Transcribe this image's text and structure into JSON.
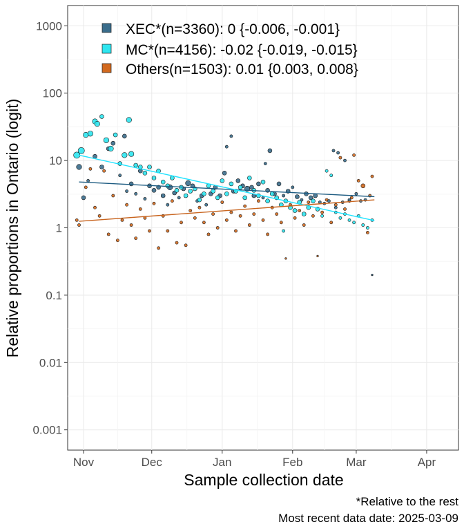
{
  "chart_data": {
    "type": "scatter",
    "xlabel": "Sample collection date",
    "ylabel": "Relative proportions in Ontario (logit)",
    "y_scale": "log",
    "ylim": [
      0.0005,
      2000
    ],
    "xlim": [
      "2024-10-25",
      "2025-04-15"
    ],
    "y_ticks": [
      {
        "value": 0.001,
        "label": "0.001"
      },
      {
        "value": 0.01,
        "label": "0.01"
      },
      {
        "value": 0.1,
        "label": "0.1"
      },
      {
        "value": 1,
        "label": "1"
      },
      {
        "value": 10,
        "label": "10"
      },
      {
        "value": 100,
        "label": "100"
      },
      {
        "value": 1000,
        "label": "1000"
      }
    ],
    "x_ticks": [
      {
        "date": "2024-11-01",
        "label": "Nov"
      },
      {
        "date": "2024-12-01",
        "label": "Dec"
      },
      {
        "date": "2025-01-01",
        "label": "Jan"
      },
      {
        "date": "2025-02-01",
        "label": "Feb"
      },
      {
        "date": "2025-03-01",
        "label": "Mar"
      },
      {
        "date": "2025-04-01",
        "label": "Apr"
      }
    ],
    "grid": true,
    "legend_position": "top-left",
    "series": [
      {
        "name": "XEC*(n=3360): 0 {-0.006, -0.001}",
        "color": "#3a6d8c",
        "trend": [
          {
            "date": "2024-10-30",
            "y": 4.8
          },
          {
            "date": "2025-03-09",
            "y": 2.9
          }
        ],
        "points": [
          [
            "2024-10-30",
            8.0,
            4
          ],
          [
            "2024-11-01",
            2.8,
            3
          ],
          [
            "2024-11-03",
            5.0,
            2
          ],
          [
            "2024-11-06",
            11.5,
            3
          ],
          [
            "2024-11-09",
            8.0,
            3
          ],
          [
            "2024-11-12",
            15.0,
            3
          ],
          [
            "2024-11-14",
            18.0,
            3
          ],
          [
            "2024-11-17",
            6.0,
            2
          ],
          [
            "2024-11-19",
            23.0,
            3
          ],
          [
            "2024-11-20",
            3.5,
            2
          ],
          [
            "2024-11-22",
            4.5,
            3
          ],
          [
            "2024-11-24",
            3.2,
            2
          ],
          [
            "2024-11-26",
            7.0,
            3
          ],
          [
            "2024-11-28",
            2.7,
            2
          ],
          [
            "2024-11-30",
            4.2,
            3
          ],
          [
            "2024-12-02",
            3.6,
            3
          ],
          [
            "2024-12-04",
            4.0,
            3
          ],
          [
            "2024-12-06",
            3.0,
            3
          ],
          [
            "2024-12-08",
            2.2,
            2
          ],
          [
            "2024-12-09",
            4.0,
            4
          ],
          [
            "2024-12-11",
            3.3,
            3
          ],
          [
            "2024-12-13",
            2.8,
            2
          ],
          [
            "2024-12-15",
            3.8,
            3
          ],
          [
            "2024-12-17",
            4.6,
            4
          ],
          [
            "2024-12-19",
            4.2,
            3
          ],
          [
            "2024-12-21",
            2.5,
            2
          ],
          [
            "2024-12-23",
            3.0,
            3
          ],
          [
            "2024-12-25",
            2.2,
            2
          ],
          [
            "2024-12-27",
            3.2,
            3
          ],
          [
            "2024-12-29",
            4.0,
            3
          ],
          [
            "2024-12-31",
            3.0,
            3
          ],
          [
            "2025-01-02",
            6.5,
            3
          ],
          [
            "2025-01-03",
            16.0,
            2
          ],
          [
            "2025-01-05",
            23.0,
            2
          ],
          [
            "2025-01-06",
            3.5,
            3
          ],
          [
            "2025-01-08",
            5.0,
            3
          ],
          [
            "2025-01-10",
            4.2,
            3
          ],
          [
            "2025-01-12",
            3.8,
            4
          ],
          [
            "2025-01-14",
            4.0,
            3
          ],
          [
            "2025-01-15",
            3.0,
            3
          ],
          [
            "2025-01-17",
            4.5,
            3
          ],
          [
            "2025-01-19",
            2.8,
            2
          ],
          [
            "2025-01-21",
            3.6,
            3
          ],
          [
            "2025-01-22",
            14.0,
            3
          ],
          [
            "2025-01-24",
            3.2,
            3
          ],
          [
            "2025-01-26",
            4.5,
            3
          ],
          [
            "2025-01-28",
            3.0,
            2
          ],
          [
            "2025-01-30",
            3.5,
            3
          ],
          [
            "2025-02-01",
            4.0,
            2
          ],
          [
            "2025-02-03",
            2.9,
            3
          ],
          [
            "2025-02-05",
            2.6,
            2
          ],
          [
            "2025-02-07",
            3.2,
            3
          ],
          [
            "2025-02-09",
            2.8,
            3
          ],
          [
            "2025-02-11",
            3.0,
            3
          ],
          [
            "2025-02-13",
            2.4,
            2
          ],
          [
            "2025-02-15",
            2.3,
            2
          ],
          [
            "2025-02-17",
            2.5,
            2
          ],
          [
            "2025-02-20",
            2.0,
            2
          ],
          [
            "2025-02-23",
            2.4,
            2
          ],
          [
            "2025-02-26",
            2.6,
            2
          ],
          [
            "2025-03-01",
            3.2,
            2
          ],
          [
            "2025-03-03",
            2.5,
            2
          ],
          [
            "2025-03-05",
            2.6,
            2
          ],
          [
            "2025-03-08",
            0.2,
            1
          ],
          [
            "2025-02-19",
            14.0,
            2
          ],
          [
            "2025-02-21",
            13.0,
            2
          ],
          [
            "2025-02-24",
            10.0,
            2
          ],
          [
            "2025-01-20",
            9.0,
            2
          ]
        ]
      },
      {
        "name": "MC*(n=4156): -0.02 {-0.019, -0.015}",
        "color": "#2ee6f0",
        "trend": [
          {
            "date": "2024-10-30",
            "y": 12.0
          },
          {
            "date": "2025-03-09",
            "y": 1.28
          }
        ],
        "points": [
          [
            "2024-10-29",
            12.0,
            5
          ],
          [
            "2024-10-31",
            14.0,
            5
          ],
          [
            "2024-11-02",
            24.0,
            4
          ],
          [
            "2024-11-04",
            25.0,
            4
          ],
          [
            "2024-11-06",
            38.0,
            4
          ],
          [
            "2024-11-07",
            35.0,
            4
          ],
          [
            "2024-11-09",
            45.0,
            3
          ],
          [
            "2024-11-11",
            20.0,
            4
          ],
          [
            "2024-11-13",
            15.0,
            4
          ],
          [
            "2024-11-15",
            24.0,
            3
          ],
          [
            "2024-11-17",
            9.0,
            3
          ],
          [
            "2024-11-19",
            12.0,
            4
          ],
          [
            "2024-11-21",
            40.0,
            4
          ],
          [
            "2024-11-22",
            12.5,
            4
          ],
          [
            "2024-11-24",
            8.5,
            3
          ],
          [
            "2024-11-26",
            8.0,
            3
          ],
          [
            "2024-11-28",
            6.5,
            3
          ],
          [
            "2024-11-30",
            8.0,
            3
          ],
          [
            "2024-12-02",
            5.5,
            3
          ],
          [
            "2024-12-04",
            7.0,
            3
          ],
          [
            "2024-12-06",
            4.8,
            3
          ],
          [
            "2024-12-08",
            4.2,
            3
          ],
          [
            "2024-12-10",
            5.5,
            3
          ],
          [
            "2024-12-12",
            3.6,
            3
          ],
          [
            "2024-12-14",
            4.0,
            3
          ],
          [
            "2024-12-16",
            3.0,
            3
          ],
          [
            "2024-12-18",
            3.5,
            3
          ],
          [
            "2024-12-20",
            3.8,
            3
          ],
          [
            "2024-12-22",
            2.6,
            3
          ],
          [
            "2024-12-24",
            3.2,
            3
          ],
          [
            "2024-12-26",
            4.2,
            3
          ],
          [
            "2024-12-28",
            3.5,
            3
          ],
          [
            "2024-12-30",
            2.8,
            3
          ],
          [
            "2025-01-01",
            5.0,
            3
          ],
          [
            "2025-01-03",
            3.2,
            3
          ],
          [
            "2025-01-05",
            4.5,
            3
          ],
          [
            "2025-01-07",
            3.5,
            3
          ],
          [
            "2025-01-09",
            4.0,
            3
          ],
          [
            "2025-01-11",
            2.8,
            3
          ],
          [
            "2025-01-13",
            5.5,
            3
          ],
          [
            "2025-01-15",
            3.6,
            3
          ],
          [
            "2025-01-17",
            3.0,
            3
          ],
          [
            "2025-01-19",
            4.8,
            3
          ],
          [
            "2025-01-21",
            2.5,
            3
          ],
          [
            "2025-01-23",
            3.2,
            3
          ],
          [
            "2025-01-25",
            2.8,
            3
          ],
          [
            "2025-01-27",
            2.2,
            3
          ],
          [
            "2025-01-29",
            2.5,
            3
          ],
          [
            "2025-01-31",
            2.0,
            3
          ],
          [
            "2025-02-02",
            1.8,
            3
          ],
          [
            "2025-02-04",
            2.4,
            3
          ],
          [
            "2025-02-06",
            1.6,
            3
          ],
          [
            "2025-02-08",
            2.0,
            3
          ],
          [
            "2025-02-10",
            2.5,
            3
          ],
          [
            "2025-02-12",
            1.9,
            3
          ],
          [
            "2025-02-14",
            1.5,
            2
          ],
          [
            "2025-02-16",
            7.0,
            2
          ],
          [
            "2025-02-18",
            6.0,
            2
          ],
          [
            "2025-02-20",
            1.7,
            2
          ],
          [
            "2025-02-22",
            1.4,
            2
          ],
          [
            "2025-02-24",
            1.6,
            2
          ],
          [
            "2025-02-26",
            1.3,
            2
          ],
          [
            "2025-02-28",
            1.2,
            2
          ],
          [
            "2025-03-02",
            1.5,
            2
          ],
          [
            "2025-03-04",
            1.1,
            2
          ],
          [
            "2025-03-06",
            1.0,
            2
          ],
          [
            "2025-03-08",
            1.3,
            2
          ],
          [
            "2025-01-28",
            0.9,
            2
          ]
        ]
      },
      {
        "name": "Others(n=1503): 0.01 {0.003, 0.008}",
        "color": "#d2691e",
        "trend": [
          {
            "date": "2024-10-30",
            "y": 1.25
          },
          {
            "date": "2025-03-09",
            "y": 2.6
          }
        ],
        "points": [
          [
            "2024-10-29",
            1.3,
            2
          ],
          [
            "2024-10-30",
            1.1,
            2
          ],
          [
            "2024-11-02",
            4.0,
            2
          ],
          [
            "2024-11-04",
            7.5,
            2
          ],
          [
            "2024-11-06",
            2.0,
            2
          ],
          [
            "2024-11-08",
            1.5,
            2
          ],
          [
            "2024-11-10",
            7.0,
            2
          ],
          [
            "2024-11-12",
            0.8,
            2
          ],
          [
            "2024-11-14",
            3.0,
            2
          ],
          [
            "2024-11-16",
            0.65,
            2
          ],
          [
            "2024-11-18",
            1.3,
            2
          ],
          [
            "2024-11-20",
            2.2,
            2
          ],
          [
            "2024-11-22",
            1.1,
            2
          ],
          [
            "2024-11-24",
            0.7,
            2
          ],
          [
            "2024-11-26",
            1.9,
            2
          ],
          [
            "2024-11-28",
            1.4,
            2
          ],
          [
            "2024-11-30",
            0.9,
            2
          ],
          [
            "2024-12-02",
            2.3,
            2
          ],
          [
            "2024-12-04",
            0.5,
            2
          ],
          [
            "2024-12-06",
            1.5,
            2
          ],
          [
            "2024-12-08",
            0.9,
            2
          ],
          [
            "2024-12-10",
            2.5,
            2
          ],
          [
            "2024-12-12",
            0.6,
            2
          ],
          [
            "2024-12-14",
            1.2,
            2
          ],
          [
            "2024-12-16",
            0.55,
            2
          ],
          [
            "2024-12-18",
            1.8,
            2
          ],
          [
            "2024-12-20",
            1.4,
            2
          ],
          [
            "2024-12-22",
            2.0,
            2
          ],
          [
            "2024-12-24",
            1.2,
            2
          ],
          [
            "2024-12-26",
            0.8,
            2
          ],
          [
            "2024-12-28",
            1.6,
            2
          ],
          [
            "2024-12-30",
            1.0,
            2
          ],
          [
            "2025-01-01",
            2.4,
            2
          ],
          [
            "2025-01-03",
            1.3,
            2
          ],
          [
            "2025-01-05",
            1.7,
            2
          ],
          [
            "2025-01-07",
            0.9,
            2
          ],
          [
            "2025-01-09",
            1.5,
            2
          ],
          [
            "2025-01-11",
            2.1,
            2
          ],
          [
            "2025-01-13",
            1.1,
            2
          ],
          [
            "2025-01-15",
            1.6,
            2
          ],
          [
            "2025-01-17",
            2.5,
            2
          ],
          [
            "2025-01-19",
            1.3,
            2
          ],
          [
            "2025-01-21",
            0.8,
            2
          ],
          [
            "2025-01-23",
            2.0,
            2
          ],
          [
            "2025-01-25",
            1.6,
            2
          ],
          [
            "2025-01-27",
            1.2,
            2
          ],
          [
            "2025-01-29",
            0.35,
            1
          ],
          [
            "2025-01-31",
            2.2,
            2
          ],
          [
            "2025-02-02",
            1.4,
            2
          ],
          [
            "2025-02-04",
            1.8,
            2
          ],
          [
            "2025-02-06",
            1.1,
            2
          ],
          [
            "2025-02-08",
            2.4,
            2
          ],
          [
            "2025-02-10",
            1.5,
            2
          ],
          [
            "2025-02-12",
            0.38,
            1
          ],
          [
            "2025-02-14",
            1.7,
            2
          ],
          [
            "2025-02-16",
            2.6,
            2
          ],
          [
            "2025-02-18",
            1.2,
            2
          ],
          [
            "2025-02-20",
            2.2,
            2
          ],
          [
            "2025-02-22",
            11.0,
            2
          ],
          [
            "2025-02-24",
            1.9,
            2
          ],
          [
            "2025-02-26",
            2.5,
            2
          ],
          [
            "2025-02-28",
            12.0,
            2
          ],
          [
            "2025-03-02",
            5.0,
            2
          ],
          [
            "2025-03-04",
            4.2,
            3
          ],
          [
            "2025-03-06",
            0.85,
            2
          ],
          [
            "2025-03-08",
            5.8,
            2
          ],
          [
            "2025-02-27",
            2.8,
            2
          ],
          [
            "2025-03-07",
            3.0,
            2
          ]
        ]
      }
    ],
    "captions": [
      "*Relative to the rest",
      "Most recent data date: 2025-03-09"
    ]
  }
}
